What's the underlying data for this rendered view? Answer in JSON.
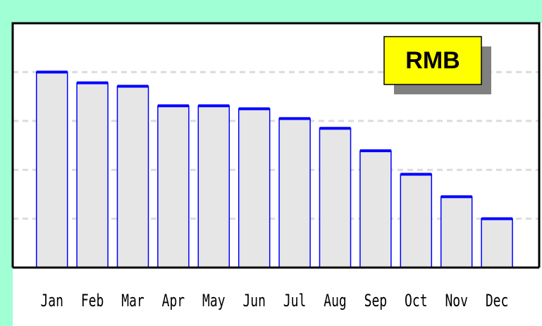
{
  "chart_data": {
    "type": "bar",
    "categories": [
      "Jan",
      "Feb",
      "Mar",
      "Apr",
      "May",
      "Jun",
      "Jul",
      "Aug",
      "Sep",
      "Oct",
      "Nov",
      "Dec"
    ],
    "series": [
      {
        "name": "RMB",
        "color": "#0000ff",
        "fill": "#e6e6e6",
        "values": [
          4.0,
          3.78,
          3.71,
          3.31,
          3.31,
          3.25,
          3.05,
          2.85,
          2.39,
          1.91,
          1.45,
          1.0
        ]
      }
    ],
    "ylim": [
      0,
      5
    ],
    "yticks": [
      1,
      2,
      3,
      4
    ],
    "grid": true,
    "legend": "upper right"
  }
}
